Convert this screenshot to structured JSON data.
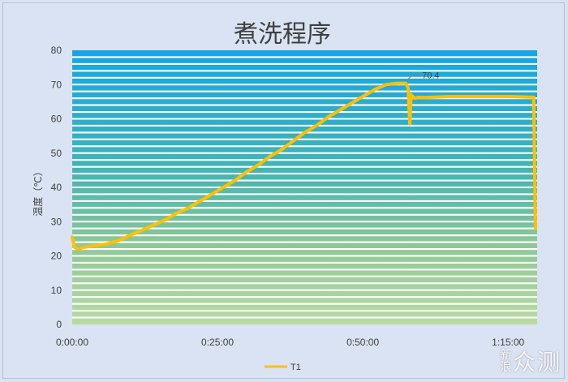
{
  "chart_data": {
    "type": "line",
    "title": "煮洗程序",
    "ylabel": "温度（℃）",
    "xlabel": "",
    "ylim": [
      0,
      80
    ],
    "yticks": [
      "0",
      "10",
      "20",
      "30",
      "40",
      "50",
      "60",
      "70",
      "80"
    ],
    "xticks": [
      "0:00:00",
      "0:25:00",
      "0:50:00",
      "1:15:00"
    ],
    "xlim_minutes": [
      0,
      80
    ],
    "grid": true,
    "legend_position": "bottom",
    "series": [
      {
        "name": "T1",
        "color": "#ffc000",
        "x_minutes": [
          0,
          0.4,
          1,
          2,
          4,
          6,
          8,
          10,
          12,
          14,
          16,
          18,
          20,
          22,
          24,
          26,
          28,
          30,
          32,
          34,
          36,
          38,
          40,
          42,
          44,
          46,
          48,
          50,
          52,
          54,
          56,
          57.4,
          57.8,
          58.1,
          58.3,
          58.6,
          59,
          59.5,
          60,
          62,
          65,
          70,
          75,
          79.4,
          79.7
        ],
        "y": [
          25.5,
          22.5,
          22,
          22.5,
          23,
          23.5,
          24.5,
          26,
          27.5,
          29,
          30.5,
          32.5,
          34,
          36,
          38,
          40,
          42,
          44.5,
          46.5,
          49,
          51,
          53.5,
          56,
          58,
          60.5,
          62.5,
          64.5,
          66.5,
          68.5,
          70,
          70.4,
          70.4,
          69,
          58.5,
          67,
          66.5,
          66,
          66.3,
          66.2,
          66.3,
          66.5,
          66.5,
          66.5,
          66.3,
          28
        ]
      }
    ],
    "annotations": [
      {
        "text": "70.4",
        "x_minutes": 57.4,
        "y": 70.4
      }
    ]
  },
  "watermark": {
    "part1": "新浪",
    "part2": "众测"
  }
}
